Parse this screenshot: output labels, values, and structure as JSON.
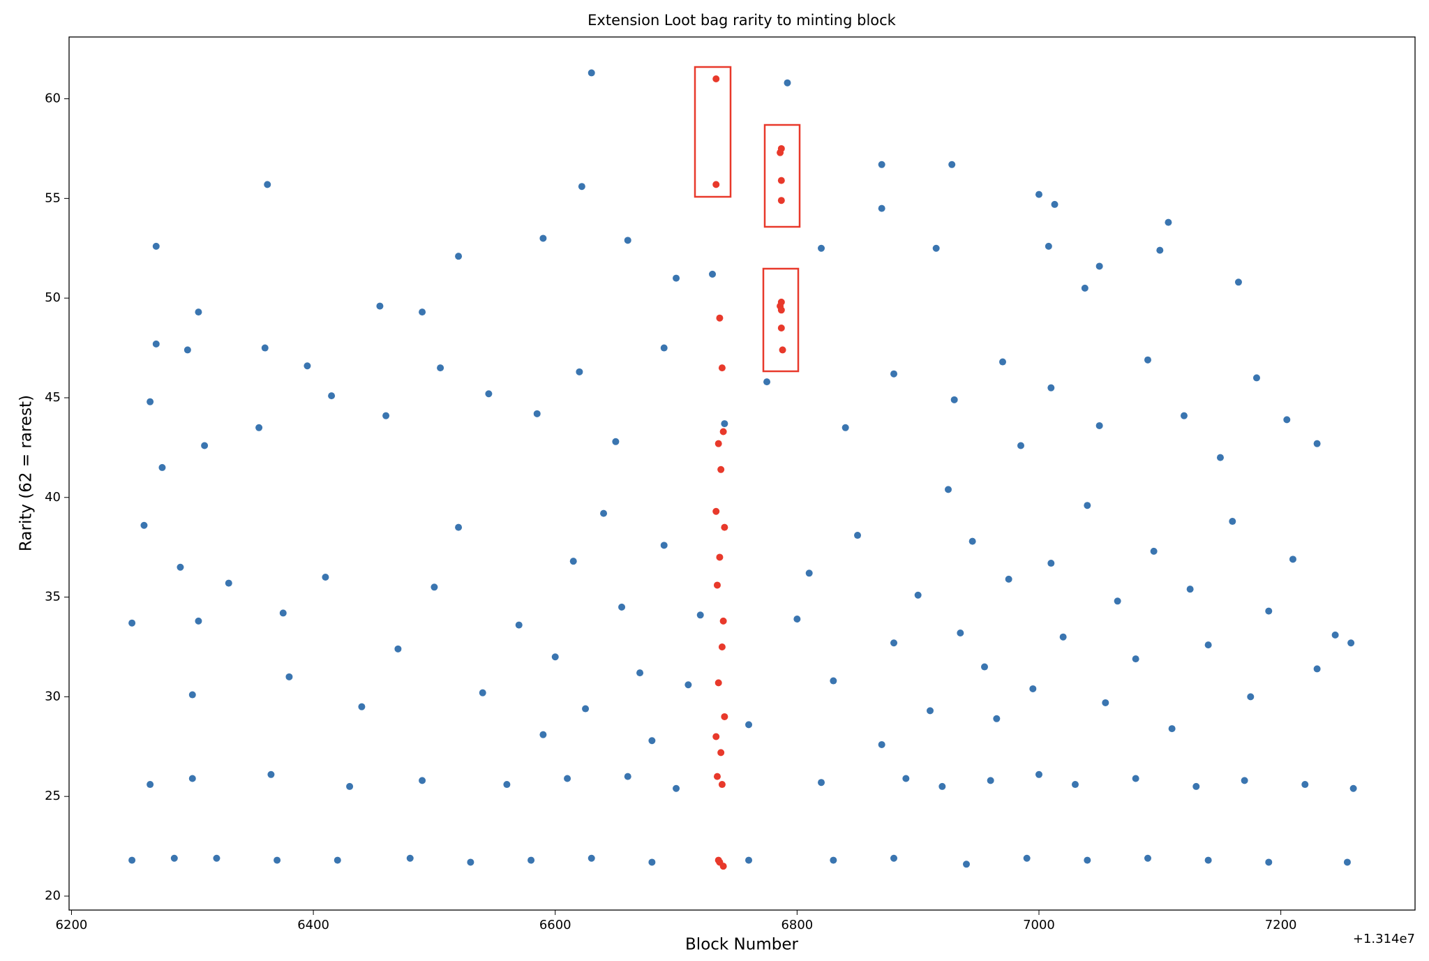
{
  "chart_data": {
    "type": "scatter",
    "title": "Extension Loot bag rarity to minting block",
    "x_label": "Block Number",
    "y_label": "Rarity (62 = rarest)",
    "x_offset_label": "+1.314e7",
    "xlim": [
      6198,
      7311
    ],
    "ylim": [
      19.3,
      63.1
    ],
    "xticks": [
      6200,
      6400,
      6600,
      6800,
      7000,
      7200
    ],
    "yticks": [
      20,
      25,
      30,
      35,
      40,
      45,
      50,
      55,
      60
    ],
    "series": [
      {
        "color": "#3a75b0",
        "x": [
          6250,
          6285,
          6320,
          6370,
          6420,
          6480,
          6530,
          6580,
          6630,
          6680,
          6760,
          6830,
          6880,
          6940,
          6990,
          7040,
          7090,
          7140,
          7190,
          7255,
          6265,
          6300,
          6365,
          6430,
          6490,
          6560,
          6610,
          6660,
          6700,
          6820,
          6890,
          6920,
          6960,
          7000,
          7030,
          7080,
          7130,
          7170,
          7220,
          7260,
          6300,
          6305,
          6290,
          6260,
          6250,
          6330,
          6375,
          6380,
          6410,
          6440,
          6470,
          6500,
          6520,
          6540,
          6570,
          6590,
          6600,
          6615,
          6625,
          6640,
          6655,
          6670,
          6680,
          6690,
          6710,
          6720,
          6760,
          6800,
          6810,
          6830,
          6850,
          6870,
          6880,
          6900,
          6910,
          6925,
          6935,
          6945,
          6955,
          6965,
          6975,
          6985,
          6995,
          7010,
          7020,
          7040,
          7055,
          7065,
          7080,
          7095,
          7110,
          7125,
          7140,
          7160,
          7175,
          7190,
          7210,
          7230,
          7245,
          7258,
          6275,
          6310,
          6355,
          6415,
          6460,
          6505,
          6545,
          6585,
          6620,
          6650,
          6690,
          6740,
          6775,
          6840,
          6880,
          6930,
          6970,
          7010,
          7050,
          7090,
          7120,
          7150,
          7180,
          7205,
          7230,
          6270,
          6362,
          6630,
          6622,
          6792,
          6870,
          6928,
          7000,
          7013,
          7107,
          6870,
          6590,
          6660,
          6820,
          6520,
          6915,
          7008,
          7100,
          6305,
          6270,
          6265,
          6296,
          6360,
          6395,
          6455,
          6490,
          6700,
          6730,
          7165,
          7050,
          7038
        ],
        "values": [
          21.8,
          21.9,
          21.9,
          21.8,
          21.8,
          21.9,
          21.7,
          21.8,
          21.9,
          21.7,
          21.8,
          21.8,
          21.9,
          21.6,
          21.9,
          21.8,
          21.9,
          21.8,
          21.7,
          21.7,
          25.6,
          25.9,
          26.1,
          25.5,
          25.8,
          25.6,
          25.9,
          26.0,
          25.4,
          25.7,
          25.9,
          25.5,
          25.8,
          26.1,
          25.6,
          25.9,
          25.5,
          25.8,
          25.6,
          25.4,
          30.1,
          33.8,
          36.5,
          38.6,
          33.7,
          35.7,
          34.2,
          31,
          36,
          29.5,
          32.4,
          35.5,
          38.5,
          30.2,
          33.6,
          28.1,
          32.0,
          36.8,
          29.4,
          39.2,
          34.5,
          31.2,
          27.8,
          37.6,
          30.6,
          34.1,
          28.6,
          33.9,
          36.2,
          30.8,
          38.1,
          27.6,
          32.7,
          35.1,
          29.3,
          40.4,
          33.2,
          37.8,
          31.5,
          28.9,
          35.9,
          42.6,
          30.4,
          36.7,
          33.0,
          39.6,
          29.7,
          34.8,
          31.9,
          37.3,
          28.4,
          35.4,
          32.6,
          38.8,
          30.0,
          34.3,
          36.9,
          31.4,
          33.1,
          32.7,
          41.5,
          42.6,
          43.5,
          45.1,
          44.1,
          46.5,
          45.2,
          44.2,
          46.3,
          42.8,
          47.5,
          43.7,
          45.8,
          43.5,
          46.2,
          44.9,
          46.8,
          45.5,
          43.6,
          46.9,
          44.1,
          42.0,
          46.0,
          43.9,
          42.7,
          52.6,
          55.7,
          61.3,
          55.6,
          60.8,
          56.7,
          56.7,
          55.2,
          54.7,
          53.8,
          54.5,
          53,
          52.9,
          52.5,
          52.1,
          52.5,
          52.6,
          52.4,
          49.3,
          47.7,
          44.8,
          47.4,
          47.5,
          46.6,
          49.6,
          49.3,
          51,
          51.2,
          50.8,
          51.6,
          50.5
        ]
      },
      {
        "color": "#e8392b",
        "x": [
          6733,
          6733,
          6787,
          6786,
          6787,
          6787,
          6787,
          6786,
          6787,
          6787,
          6788,
          6736,
          6738,
          6739,
          6735,
          6737,
          6733,
          6740,
          6736,
          6734,
          6739,
          6738,
          6735,
          6740,
          6733,
          6737,
          6734,
          6738,
          6736,
          6739,
          6735
        ],
        "values": [
          61,
          55.7,
          57.5,
          57.3,
          55.9,
          54.9,
          49.8,
          49.6,
          49.4,
          48.5,
          47.4,
          49,
          46.5,
          43.3,
          42.7,
          41.4,
          39.3,
          38.5,
          37,
          35.6,
          33.8,
          32.5,
          30.7,
          29,
          28,
          27.2,
          26,
          25.6,
          21.7,
          21.5,
          21.8
        ]
      }
    ]
  }
}
